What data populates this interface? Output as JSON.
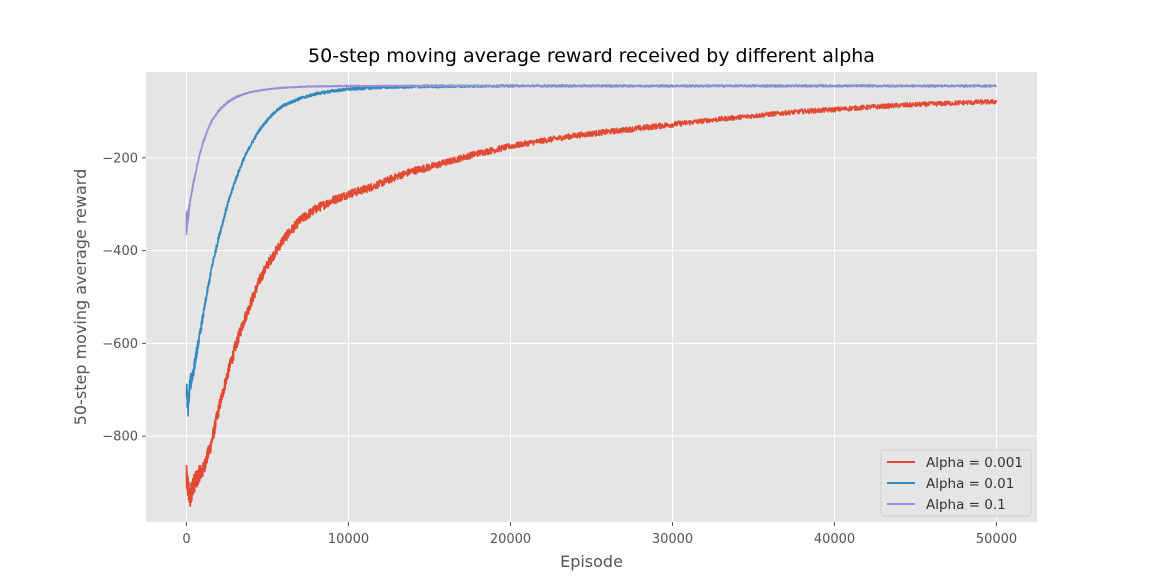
{
  "chart_data": {
    "type": "line",
    "title": "50-step moving average reward received by different alpha",
    "xlabel": "Episode",
    "ylabel": "50-step moving average reward",
    "xlim": [
      -2500,
      52500
    ],
    "ylim": [
      -985,
      -15
    ],
    "xticks": [
      0,
      10000,
      20000,
      30000,
      40000,
      50000
    ],
    "yticks": [
      -800,
      -600,
      -400,
      -200
    ],
    "grid": true,
    "legend_position": "bottom-right",
    "series": [
      {
        "name": "Alpha = 0.001",
        "color": "#E24A33",
        "x": [
          0,
          200,
          400,
          600,
          800,
          1000,
          1500,
          2000,
          2500,
          3000,
          3500,
          4000,
          4500,
          5000,
          6000,
          7000,
          8000,
          9000,
          10000,
          11000,
          12000,
          13000,
          14000,
          15000,
          16000,
          17000,
          18000,
          19000,
          20000,
          22000,
          24000,
          26000,
          28000,
          30000,
          32000,
          34000,
          36000,
          38000,
          40000,
          42000,
          44000,
          46000,
          48000,
          50000
        ],
        "y": [
          -890,
          -935,
          -905,
          -895,
          -880,
          -875,
          -820,
          -740,
          -670,
          -610,
          -555,
          -510,
          -465,
          -430,
          -375,
          -335,
          -310,
          -292,
          -278,
          -268,
          -255,
          -240,
          -228,
          -220,
          -210,
          -200,
          -190,
          -183,
          -175,
          -163,
          -152,
          -144,
          -136,
          -128,
          -120,
          -113,
          -106,
          -100,
          -96,
          -91,
          -87,
          -84,
          -81,
          -79
        ],
        "band": [
          28,
          25,
          22,
          20,
          18,
          16,
          16,
          15,
          14,
          14,
          13,
          12,
          12,
          11,
          11,
          10,
          10,
          9,
          9,
          9,
          8,
          8,
          8,
          8,
          7,
          7,
          7,
          7,
          6,
          6,
          6,
          6,
          6,
          6,
          5,
          5,
          5,
          5,
          5,
          5,
          5,
          5,
          5,
          5
        ]
      },
      {
        "name": "Alpha = 0.01",
        "color": "#348ABD",
        "x": [
          0,
          100,
          200,
          400,
          600,
          800,
          1000,
          1300,
          1600,
          2000,
          2500,
          3000,
          3500,
          4000,
          4500,
          5000,
          5500,
          6000,
          7000,
          8000,
          9000,
          10000,
          12000,
          15000,
          20000,
          25000,
          30000,
          35000,
          40000,
          45000,
          50000
        ],
        "y": [
          -700,
          -740,
          -690,
          -665,
          -625,
          -585,
          -545,
          -485,
          -430,
          -370,
          -305,
          -250,
          -205,
          -170,
          -140,
          -118,
          -100,
          -87,
          -72,
          -62,
          -56,
          -52,
          -48,
          -46,
          -45,
          -45,
          -45,
          -45,
          -45,
          -45,
          -45
        ],
        "band": [
          22,
          20,
          18,
          15,
          12,
          10,
          9,
          8,
          7,
          6,
          5,
          5,
          4,
          4,
          3,
          3,
          3,
          3,
          3,
          3,
          3,
          3,
          3,
          3,
          2,
          2,
          2,
          2,
          2,
          2,
          2
        ]
      },
      {
        "name": "Alpha = 0.1",
        "color": "#988ED5",
        "x": [
          0,
          100,
          200,
          300,
          400,
          600,
          800,
          1000,
          1300,
          1600,
          2000,
          2500,
          3000,
          3500,
          4000,
          5000,
          6000,
          7000,
          8000,
          10000,
          15000,
          20000,
          30000,
          40000,
          50000
        ],
        "y": [
          -340,
          -325,
          -300,
          -280,
          -260,
          -225,
          -195,
          -170,
          -140,
          -118,
          -98,
          -81,
          -70,
          -63,
          -58,
          -52,
          -49,
          -47,
          -46,
          -45,
          -45,
          -45,
          -45,
          -45,
          -45
        ],
        "band": [
          30,
          12,
          8,
          6,
          5,
          4,
          3,
          3,
          2,
          2,
          2,
          2,
          2,
          1,
          1,
          1,
          1,
          1,
          1,
          1,
          1,
          1,
          1,
          1,
          1
        ]
      }
    ]
  }
}
